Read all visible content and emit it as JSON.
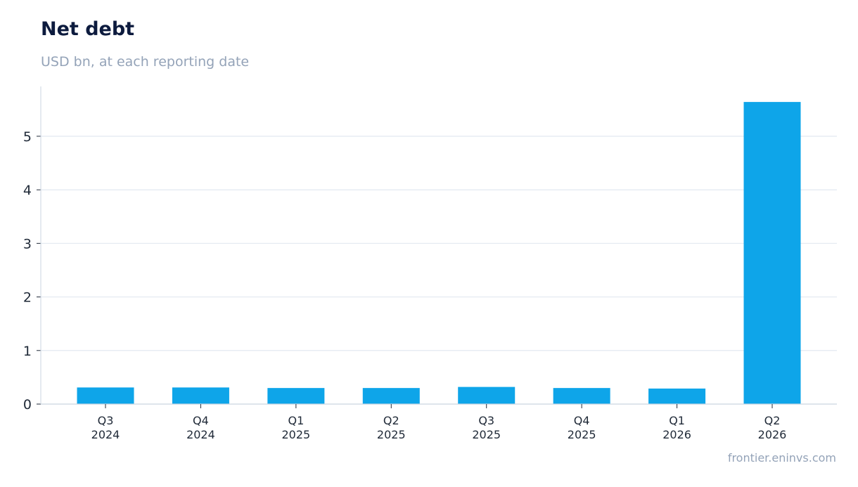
{
  "header": {
    "title": "Net debt",
    "subtitle": "USD bn, at each reporting date"
  },
  "footer": {
    "source": "frontier.eninvs.com"
  },
  "colors": {
    "bar": "#0ea5e9",
    "grid": "#e2e8f0",
    "axis": "#cbd5e1"
  },
  "chart_data": {
    "type": "bar",
    "title": "Net debt",
    "subtitle": "USD bn, at each reporting date",
    "categories": [
      [
        "Q3",
        "2024"
      ],
      [
        "Q4",
        "2024"
      ],
      [
        "Q1",
        "2025"
      ],
      [
        "Q2",
        "2025"
      ],
      [
        "Q3",
        "2025"
      ],
      [
        "Q4",
        "2025"
      ],
      [
        "Q1",
        "2026"
      ],
      [
        "Q2",
        "2026"
      ]
    ],
    "values": [
      0.31,
      0.31,
      0.3,
      0.3,
      0.32,
      0.3,
      0.29,
      5.64
    ],
    "ylim": [
      0,
      5.93
    ],
    "yticks": [
      0,
      1,
      2,
      3,
      4,
      5
    ],
    "grid": true,
    "legend": "none"
  }
}
